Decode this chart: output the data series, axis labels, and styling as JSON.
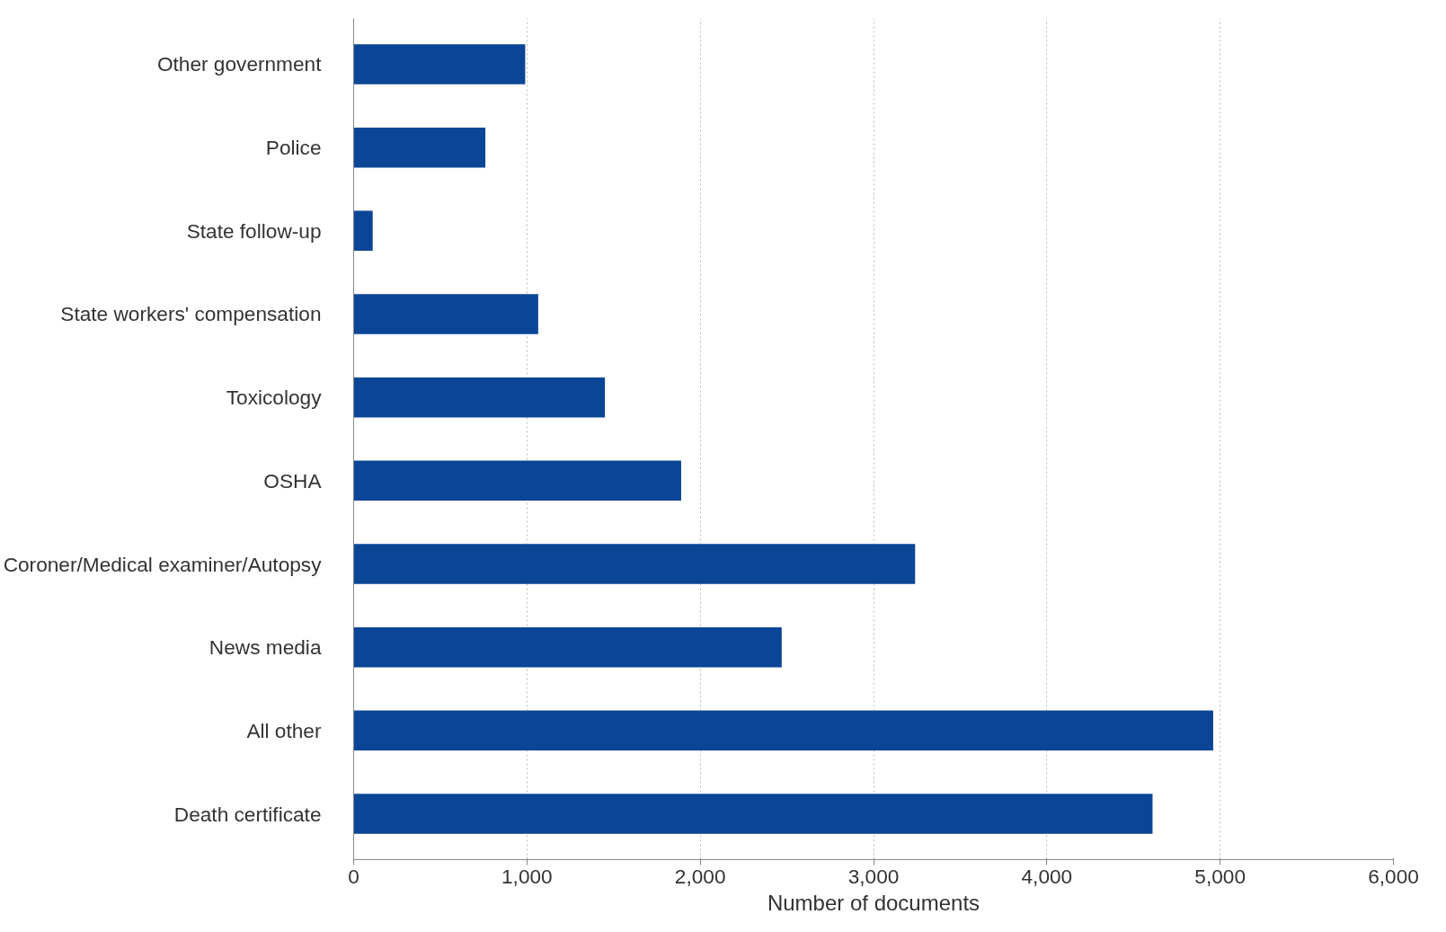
{
  "chart_data": {
    "type": "bar",
    "orientation": "horizontal",
    "xlabel": "Number of documents",
    "categories": [
      "Other government",
      "Police",
      "State follow-up",
      "State workers' compensation",
      "Toxicology",
      "OSHA",
      "Coroner/Medical examiner/Autopsy",
      "News media",
      "All other",
      "Death certificate"
    ],
    "values": [
      990,
      760,
      110,
      1065,
      1450,
      1890,
      3240,
      2470,
      4960,
      4610
    ],
    "color": "#0b4596",
    "xlim": [
      0,
      6000
    ],
    "xticks": [
      {
        "value": 0,
        "label": "0"
      },
      {
        "value": 1000,
        "label": "1,000"
      },
      {
        "value": 2000,
        "label": "2,000"
      },
      {
        "value": 3000,
        "label": "3,000"
      },
      {
        "value": 4000,
        "label": "4,000"
      },
      {
        "value": 5000,
        "label": "5,000"
      },
      {
        "value": 6000,
        "label": "6,000"
      }
    ],
    "grid": "x"
  }
}
